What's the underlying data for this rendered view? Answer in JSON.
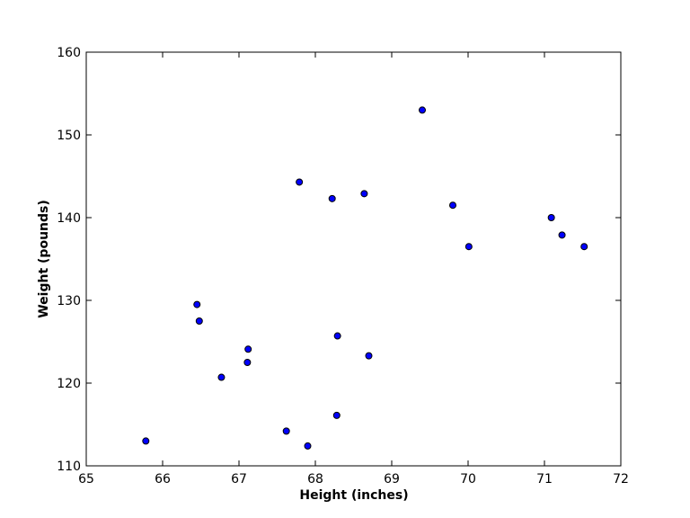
{
  "chart_data": {
    "type": "scatter",
    "title": "",
    "xlabel": "Height (inches)",
    "ylabel": "Weight (pounds)",
    "xlim": [
      65,
      72
    ],
    "ylim": [
      110,
      160
    ],
    "xticks": [
      65,
      66,
      67,
      68,
      69,
      70,
      71,
      72
    ],
    "yticks": [
      110,
      120,
      130,
      140,
      150,
      160
    ],
    "grid": false,
    "marker_color": "#0000ff",
    "marker_edge_color": "#000000",
    "points": [
      {
        "x": 65.78,
        "y": 113.0
      },
      {
        "x": 66.45,
        "y": 129.5
      },
      {
        "x": 66.48,
        "y": 127.5
      },
      {
        "x": 66.77,
        "y": 120.7
      },
      {
        "x": 67.12,
        "y": 124.1
      },
      {
        "x": 67.11,
        "y": 122.5
      },
      {
        "x": 67.62,
        "y": 114.2
      },
      {
        "x": 67.79,
        "y": 144.3
      },
      {
        "x": 67.9,
        "y": 112.4
      },
      {
        "x": 68.22,
        "y": 142.3
      },
      {
        "x": 68.29,
        "y": 125.7
      },
      {
        "x": 68.28,
        "y": 116.1
      },
      {
        "x": 68.64,
        "y": 142.9
      },
      {
        "x": 68.7,
        "y": 123.3
      },
      {
        "x": 69.4,
        "y": 153.0
      },
      {
        "x": 69.8,
        "y": 141.5
      },
      {
        "x": 70.01,
        "y": 136.5
      },
      {
        "x": 71.09,
        "y": 140.0
      },
      {
        "x": 71.23,
        "y": 137.9
      },
      {
        "x": 71.52,
        "y": 136.5
      }
    ]
  }
}
